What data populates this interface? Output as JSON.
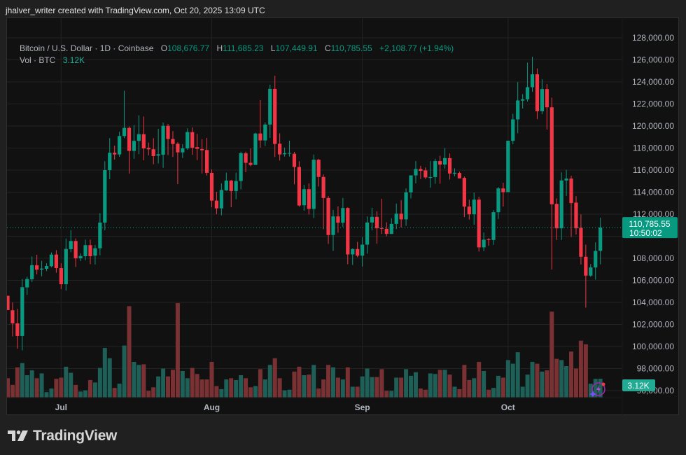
{
  "caption": "jhalver_writer created with TradingView.com, Oct 20, 2025 13:09 UTC",
  "legend": {
    "symbol": "Bitcoin / U.S. Dollar · 1D · Coinbase",
    "o_label": "O",
    "o_value": "108,676.77",
    "h_label": "H",
    "h_value": "111,685.23",
    "l_label": "L",
    "l_value": "107,449.91",
    "c_label": "C",
    "c_value": "110,785.55",
    "change": "+2,108.77 (+1.94%)",
    "vol_label": "Vol · BTC",
    "vol_value": "3.12K"
  },
  "last_price": {
    "price": "110,785.55",
    "countdown": "10:50:02"
  },
  "last_volume": "3.12K",
  "logo": "TradingView",
  "colors": {
    "up": "#089981",
    "down": "#f23645",
    "vol_up": "#1e5f57",
    "vol_down": "#7a3133",
    "background": "#111111",
    "grid": "#222222"
  },
  "chart_data": {
    "type": "candlestick",
    "symbol": "BTCUSD",
    "interval": "1D",
    "ylim": [
      96000,
      128000
    ],
    "y_ticks": [
      "128,000.00",
      "126,000.00",
      "124,000.00",
      "122,000.00",
      "120,000.00",
      "118,000.00",
      "116,000.00",
      "114,000.00",
      "112,000.00",
      "108,000.00",
      "106,000.00",
      "104,000.00",
      "102,000.00",
      "100,000.00",
      "98,000.00",
      "96,000.00"
    ],
    "x_ticks": [
      {
        "label": "Jul",
        "date": "Jul 1"
      },
      {
        "label": "Aug",
        "date": "Aug 1"
      },
      {
        "label": "Sep",
        "date": "Sep 1"
      },
      {
        "label": "Oct",
        "date": "Oct 1"
      }
    ],
    "grid": true,
    "volume_unit": "K BTC",
    "columns": [
      "date",
      "open",
      "high",
      "low",
      "close",
      "volume"
    ],
    "candles": [
      [
        "Jun 20",
        104600,
        104600,
        103300,
        103300,
        3.2
      ],
      [
        "Jun 21",
        103285,
        103983,
        100915,
        102100,
        2.1
      ],
      [
        "Jun 22",
        102100,
        103412,
        99800,
        100957,
        5.0
      ],
      [
        "Jun 23",
        100957,
        106120,
        99650,
        105380,
        5.7
      ],
      [
        "Jun 24",
        105360,
        106330,
        104680,
        106120,
        3.7
      ],
      [
        "Jun 25",
        106100,
        108170,
        105850,
        107370,
        4.5
      ],
      [
        "Jun 26",
        107370,
        108320,
        106540,
        106970,
        3.2
      ],
      [
        "Jun 27",
        106970,
        107770,
        106370,
        107070,
        4.0
      ],
      [
        "Jun 28",
        107050,
        107540,
        106840,
        107300,
        0.9
      ],
      [
        "Jun 29",
        107280,
        108530,
        107180,
        108340,
        1.5
      ],
      [
        "Jun 30",
        108340,
        108740,
        106690,
        107110,
        3.1
      ],
      [
        "Jul 1",
        107110,
        107540,
        105210,
        105650,
        3.3
      ],
      [
        "Jul 2",
        105650,
        109800,
        105060,
        108850,
        5.1
      ],
      [
        "Jul 3",
        108830,
        110560,
        108550,
        109570,
        4.1
      ],
      [
        "Jul 4",
        109570,
        109800,
        107220,
        108000,
        2.1
      ],
      [
        "Jul 5",
        108000,
        108450,
        107750,
        108210,
        1.0
      ],
      [
        "Jul 6",
        108190,
        109700,
        107810,
        109190,
        1.2
      ],
      [
        "Jul 7",
        109190,
        109700,
        107470,
        108190,
        2.9
      ],
      [
        "Jul 8",
        108240,
        109210,
        107430,
        108910,
        2.5
      ],
      [
        "Jul 9",
        108910,
        112090,
        108280,
        111240,
        4.9
      ],
      [
        "Jul 10",
        111240,
        116810,
        110540,
        116000,
        8.2
      ],
      [
        "Jul 11",
        116000,
        118900,
        115180,
        117570,
        6.5
      ],
      [
        "Jul 12",
        117570,
        118220,
        116950,
        117420,
        1.6
      ],
      [
        "Jul 13",
        117420,
        119470,
        117210,
        119090,
        2.3
      ],
      [
        "Jul 14",
        119090,
        123200,
        118900,
        119830,
        8.6
      ],
      [
        "Jul 15",
        119830,
        119960,
        115680,
        117740,
        15.1
      ],
      [
        "Jul 16",
        117740,
        120090,
        117020,
        118650,
        5.9
      ],
      [
        "Jul 17",
        118650,
        120970,
        117440,
        119260,
        5.4
      ],
      [
        "Jul 18",
        119260,
        120870,
        116890,
        117970,
        5.5
      ],
      [
        "Jul 19",
        118010,
        118500,
        117340,
        117890,
        1.1
      ],
      [
        "Jul 20",
        117890,
        118900,
        116530,
        117270,
        1.7
      ],
      [
        "Jul 21",
        117310,
        119750,
        116600,
        117440,
        3.5
      ],
      [
        "Jul 22",
        117400,
        120320,
        116210,
        120020,
        4.8
      ],
      [
        "Jul 23",
        120020,
        120190,
        117360,
        118820,
        3.5
      ],
      [
        "Jul 24",
        118820,
        119540,
        117190,
        118370,
        4.6
      ],
      [
        "Jul 25",
        118390,
        118520,
        114730,
        117610,
        15.6
      ],
      [
        "Jul 26",
        117610,
        118350,
        117100,
        117970,
        4.4
      ],
      [
        "Jul 27",
        117970,
        119790,
        117840,
        119450,
        3.2
      ],
      [
        "Jul 28",
        119450,
        119870,
        117380,
        118030,
        4.9
      ],
      [
        "Jul 29",
        118080,
        119280,
        116910,
        117930,
        3.9
      ],
      [
        "Jul 30",
        117910,
        118800,
        115700,
        117800,
        3.0
      ],
      [
        "Jul 31",
        117820,
        118920,
        115500,
        115750,
        3.0
      ],
      [
        "Aug 1",
        115750,
        116060,
        112640,
        113230,
        5.9
      ],
      [
        "Aug 2",
        113230,
        114030,
        112000,
        112530,
        1.9
      ],
      [
        "Aug 3",
        112530,
        114800,
        111900,
        114200,
        1.4
      ],
      [
        "Aug 4",
        114160,
        115770,
        114120,
        115050,
        3.0
      ],
      [
        "Aug 5",
        115050,
        115110,
        112640,
        114100,
        3.2
      ],
      [
        "Aug 6",
        114100,
        115770,
        113360,
        115010,
        2.9
      ],
      [
        "Aug 7",
        115010,
        117670,
        114250,
        117530,
        3.7
      ],
      [
        "Aug 8",
        117530,
        117670,
        115810,
        116660,
        3.2
      ],
      [
        "Aug 9",
        116660,
        117970,
        116340,
        116470,
        1.7
      ],
      [
        "Aug 10",
        116470,
        119390,
        116470,
        119320,
        1.9
      ],
      [
        "Aug 11",
        119320,
        122350,
        118030,
        118690,
        4.7
      ],
      [
        "Aug 12",
        118690,
        120320,
        118200,
        120130,
        3.0
      ],
      [
        "Aug 13",
        120130,
        123750,
        118920,
        123370,
        5.4
      ],
      [
        "Aug 14",
        123370,
        124550,
        117190,
        118370,
        6.5
      ],
      [
        "Aug 15",
        118390,
        119340,
        116870,
        117420,
        3.2
      ],
      [
        "Aug 16",
        117440,
        118030,
        117230,
        117530,
        1.2
      ],
      [
        "Aug 17",
        117510,
        118670,
        117230,
        117550,
        1.3
      ],
      [
        "Aug 18",
        117480,
        117650,
        114710,
        116280,
        4.3
      ],
      [
        "Aug 19",
        116280,
        116810,
        112680,
        112790,
        5.1
      ],
      [
        "Aug 20",
        112810,
        114650,
        112320,
        114270,
        3.7
      ],
      [
        "Aug 21",
        114270,
        114800,
        111970,
        112480,
        3.8
      ],
      [
        "Aug 22",
        112480,
        117410,
        111650,
        116940,
        5.4
      ],
      [
        "Aug 23",
        116940,
        117030,
        114510,
        115380,
        1.5
      ],
      [
        "Aug 24",
        115380,
        115610,
        110640,
        113470,
        3.0
      ],
      [
        "Aug 25",
        113470,
        113640,
        109300,
        110110,
        5.4
      ],
      [
        "Aug 26",
        110110,
        112390,
        108670,
        111800,
        5.0
      ],
      [
        "Aug 27",
        111800,
        112710,
        110320,
        111230,
        3.3
      ],
      [
        "Aug 28",
        111230,
        113470,
        110850,
        112560,
        3.0
      ],
      [
        "Aug 29",
        112560,
        112620,
        107460,
        108350,
        5.0
      ],
      [
        "Aug 30",
        108350,
        108900,
        107400,
        108840,
        1.8
      ],
      [
        "Aug 31",
        108840,
        109490,
        108100,
        108240,
        1.8
      ],
      [
        "Sep 1",
        108240,
        109920,
        107250,
        109240,
        3.5
      ],
      [
        "Sep 2",
        109240,
        111800,
        108420,
        111250,
        4.8
      ],
      [
        "Sep 3",
        111250,
        112580,
        110530,
        111760,
        3.4
      ],
      [
        "Sep 4",
        111760,
        112270,
        109320,
        110720,
        3.4
      ],
      [
        "Sep 5",
        110740,
        113390,
        110210,
        110680,
        4.7
      ],
      [
        "Sep 6",
        110680,
        111270,
        110000,
        110210,
        1.1
      ],
      [
        "Sep 7",
        110210,
        111630,
        110210,
        111120,
        1.1
      ],
      [
        "Sep 8",
        111120,
        112960,
        110640,
        112050,
        3.3
      ],
      [
        "Sep 9",
        112050,
        113280,
        110790,
        111530,
        3.3
      ],
      [
        "Sep 10",
        111530,
        114340,
        110950,
        113980,
        4.7
      ],
      [
        "Sep 11",
        113980,
        115520,
        113430,
        115520,
        3.6
      ],
      [
        "Sep 12",
        115520,
        116820,
        114800,
        116100,
        4.2
      ],
      [
        "Sep 13",
        116100,
        116390,
        115190,
        115930,
        1.5
      ],
      [
        "Sep 14",
        115970,
        116240,
        115190,
        115340,
        1.3
      ],
      [
        "Sep 15",
        115290,
        116820,
        114400,
        115370,
        4.0
      ],
      [
        "Sep 16",
        115370,
        117030,
        114760,
        116820,
        3.9
      ],
      [
        "Sep 17",
        116820,
        117300,
        114760,
        116500,
        4.6
      ],
      [
        "Sep 18",
        116500,
        118000,
        116140,
        117090,
        4.6
      ],
      [
        "Sep 19",
        117090,
        117510,
        115140,
        115690,
        3.8
      ],
      [
        "Sep 20",
        115670,
        116160,
        115440,
        115760,
        1.8
      ],
      [
        "Sep 21",
        115740,
        115860,
        115250,
        115250,
        1.4
      ],
      [
        "Sep 22",
        115290,
        115420,
        111740,
        112690,
        5.4
      ],
      [
        "Sep 23",
        112690,
        113320,
        111510,
        111990,
        2.9
      ],
      [
        "Sep 24",
        111990,
        113960,
        111040,
        113320,
        3.2
      ],
      [
        "Sep 25",
        113320,
        113580,
        108610,
        108990,
        5.9
      ],
      [
        "Sep 26",
        108990,
        110340,
        108650,
        109690,
        4.4
      ],
      [
        "Sep 27",
        109730,
        109830,
        109135,
        109660,
        1.3
      ],
      [
        "Sep 28",
        109660,
        112370,
        109220,
        112180,
        1.6
      ],
      [
        "Sep 29",
        112180,
        114470,
        111570,
        114340,
        3.6
      ],
      [
        "Sep 30",
        114340,
        114850,
        112690,
        114000,
        3.3
      ],
      [
        "Oct 1",
        114000,
        118660,
        114000,
        118660,
        6.2
      ],
      [
        "Oct 2",
        118660,
        121110,
        118340,
        120600,
        5.6
      ],
      [
        "Oct 3",
        120600,
        123990,
        119340,
        122320,
        7.5
      ],
      [
        "Oct 4",
        122300,
        122890,
        121580,
        122420,
        1.8
      ],
      [
        "Oct 5",
        122420,
        125750,
        122210,
        123520,
        3.8
      ],
      [
        "Oct 6",
        123520,
        126280,
        123100,
        124690,
        5.9
      ],
      [
        "Oct 7",
        124690,
        125220,
        120625,
        121340,
        5.6
      ],
      [
        "Oct 8",
        121340,
        124240,
        121070,
        123355,
        4.3
      ],
      [
        "Oct 9",
        123355,
        123800,
        119670,
        121700,
        4.5
      ],
      [
        "Oct 10",
        121700,
        122570,
        106980,
        112900,
        14.2
      ],
      [
        "Oct 11",
        112940,
        113430,
        109660,
        110720,
        6.4
      ],
      [
        "Oct 12",
        110720,
        115800,
        109660,
        115060,
        6.2
      ],
      [
        "Oct 13",
        115060,
        116030,
        113660,
        115230,
        5.2
      ],
      [
        "Oct 14",
        115230,
        115480,
        109940,
        113010,
        7.6
      ],
      [
        "Oct 15",
        113050,
        113640,
        110150,
        110720,
        4.8
      ],
      [
        "Oct 16",
        110765,
        111990,
        107440,
        108140,
        9.4
      ],
      [
        "Oct 17",
        108140,
        109240,
        103530,
        106430,
        8.8
      ],
      [
        "Oct 18",
        106430,
        107485,
        106320,
        107170,
        2.3
      ],
      [
        "Oct 19",
        107170,
        109450,
        106070,
        108670,
        3.1
      ],
      [
        "Oct 20",
        108676.77,
        111685.23,
        107449.91,
        110785.55,
        3.12
      ]
    ],
    "last_close": 110785.55
  }
}
